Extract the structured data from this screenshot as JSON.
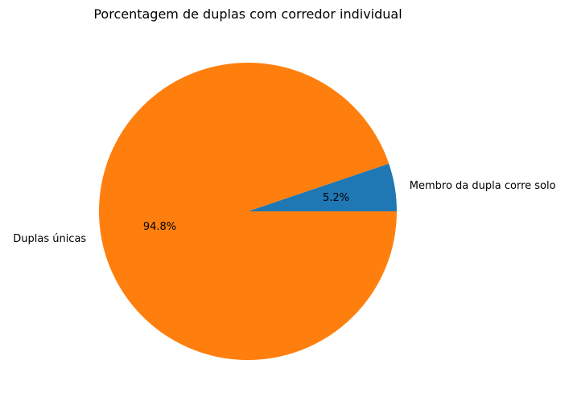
{
  "chart_data": {
    "type": "pie",
    "title": "Porcentagem de duplas com corredor individual",
    "slices": [
      {
        "label": "Membro da dupla corre solo",
        "value": 5.2,
        "pct_label": "5.2%",
        "color": "#1f77b4"
      },
      {
        "label": "Duplas únicas",
        "value": 94.8,
        "pct_label": "94.8%",
        "color": "#ff7f0e"
      }
    ],
    "start_angle_deg": 0,
    "direction": "counterclockwise"
  }
}
